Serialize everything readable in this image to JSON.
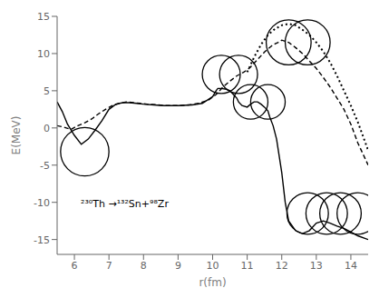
{
  "chart_data": {
    "type": "line",
    "xlabel": "r(fm)",
    "ylabel": "E(MeV)",
    "xlim": [
      5.5,
      14.5
    ],
    "ylim": [
      -17,
      15
    ],
    "xticks": [
      6,
      7,
      8,
      9,
      10,
      11,
      12,
      13,
      14
    ],
    "yticks": [
      -15,
      -10,
      -5,
      0,
      5,
      10,
      15
    ],
    "grid": false,
    "annotation": "  ²³⁰Th →¹³²Sn+⁹⁸Zr",
    "series": [
      {
        "color": "black",
        "line_style": "solid",
        "x": [
          5.5,
          5.65,
          5.8,
          6.0,
          6.2,
          6.4,
          6.6,
          6.8,
          7.0,
          7.2,
          7.4,
          7.6,
          7.8,
          8.0,
          8.3,
          8.6,
          9.0,
          9.4,
          9.7,
          10.0,
          10.1,
          10.15,
          10.25,
          10.4,
          10.5,
          10.6,
          10.7,
          10.75,
          10.85,
          11.0,
          11.1,
          11.2,
          11.3,
          11.4,
          11.5,
          11.6,
          11.65,
          11.75,
          11.85,
          12.0,
          12.1,
          12.2,
          12.4,
          12.6,
          12.8,
          13.0,
          13.2,
          13.4,
          13.6,
          13.8,
          14.0,
          14.2,
          14.5
        ],
        "values": [
          3.5,
          2.2,
          0.5,
          -1.0,
          -2.2,
          -1.5,
          -0.3,
          1.0,
          2.5,
          3.2,
          3.4,
          3.4,
          3.3,
          3.2,
          3.1,
          3.0,
          3.0,
          3.1,
          3.3,
          4.2,
          5.0,
          5.3,
          5.3,
          5.2,
          5.0,
          4.5,
          4.0,
          3.5,
          3.0,
          2.8,
          3.2,
          3.5,
          3.5,
          3.2,
          2.8,
          2.3,
          1.5,
          0.3,
          -1.5,
          -6.0,
          -10.0,
          -12.5,
          -13.8,
          -14.2,
          -13.8,
          -12.8,
          -12.5,
          -12.8,
          -13.2,
          -13.5,
          -14.0,
          -14.5,
          -15.0
        ]
      },
      {
        "color": "black",
        "line_style": "dashed",
        "x": [
          5.5,
          5.7,
          5.9,
          6.1,
          6.3,
          6.5,
          6.7,
          6.9,
          7.1,
          7.3,
          7.5,
          7.7,
          7.9,
          8.1,
          8.4,
          8.7,
          9.0,
          9.3,
          9.6,
          9.9,
          10.1,
          10.3,
          10.5,
          10.7,
          10.9,
          11.0,
          11.1,
          11.2,
          11.3,
          11.4,
          11.5,
          11.6,
          11.7,
          11.8,
          11.9,
          12.0,
          12.2,
          12.4,
          12.6,
          12.8,
          13.0,
          13.2,
          13.4,
          13.6,
          13.8,
          14.0,
          14.2,
          14.5
        ],
        "values": [
          0.3,
          0.1,
          -0.2,
          0.3,
          0.7,
          1.2,
          1.9,
          2.5,
          3.0,
          3.3,
          3.5,
          3.4,
          3.3,
          3.2,
          3.1,
          3.0,
          3.0,
          3.1,
          3.3,
          3.8,
          4.5,
          5.5,
          6.3,
          7.0,
          7.5,
          7.8,
          8.2,
          8.7,
          9.2,
          9.7,
          10.2,
          10.6,
          11.0,
          11.3,
          11.5,
          11.8,
          11.5,
          10.8,
          10.0,
          9.0,
          8.0,
          6.8,
          5.5,
          4.0,
          2.5,
          0.5,
          -2.0,
          -5.0
        ]
      },
      {
        "color": "black",
        "line_style": "dotted",
        "x": [
          11.0,
          11.2,
          11.4,
          11.6,
          11.8,
          12.0,
          12.2,
          12.4,
          12.6,
          12.8,
          13.0,
          13.2,
          13.4,
          13.6,
          13.8,
          14.0,
          14.2,
          14.5
        ],
        "values": [
          7.5,
          9.5,
          11.2,
          12.5,
          13.3,
          13.8,
          14.0,
          13.8,
          13.2,
          12.5,
          11.5,
          10.3,
          8.8,
          7.0,
          5.0,
          3.0,
          0.8,
          -3.0
        ]
      }
    ],
    "circles": {
      "color": "black",
      "points": [
        {
          "x": 6.3,
          "y": -3.2,
          "r": 0.7
        },
        {
          "x": 10.25,
          "y": 7.2,
          "r": 0.55
        },
        {
          "x": 10.75,
          "y": 7.2,
          "r": 0.55
        },
        {
          "x": 11.1,
          "y": 3.5,
          "r": 0.5
        },
        {
          "x": 11.6,
          "y": 3.5,
          "r": 0.5
        },
        {
          "x": 12.2,
          "y": 11.5,
          "r": 0.65
        },
        {
          "x": 12.75,
          "y": 11.5,
          "r": 0.65
        },
        {
          "x": 12.75,
          "y": -11.5,
          "r": 0.6
        },
        {
          "x": 13.3,
          "y": -11.5,
          "r": 0.6
        },
        {
          "x": 13.7,
          "y": -11.5,
          "r": 0.6
        },
        {
          "x": 14.2,
          "y": -11.5,
          "r": 0.6
        }
      ]
    }
  }
}
